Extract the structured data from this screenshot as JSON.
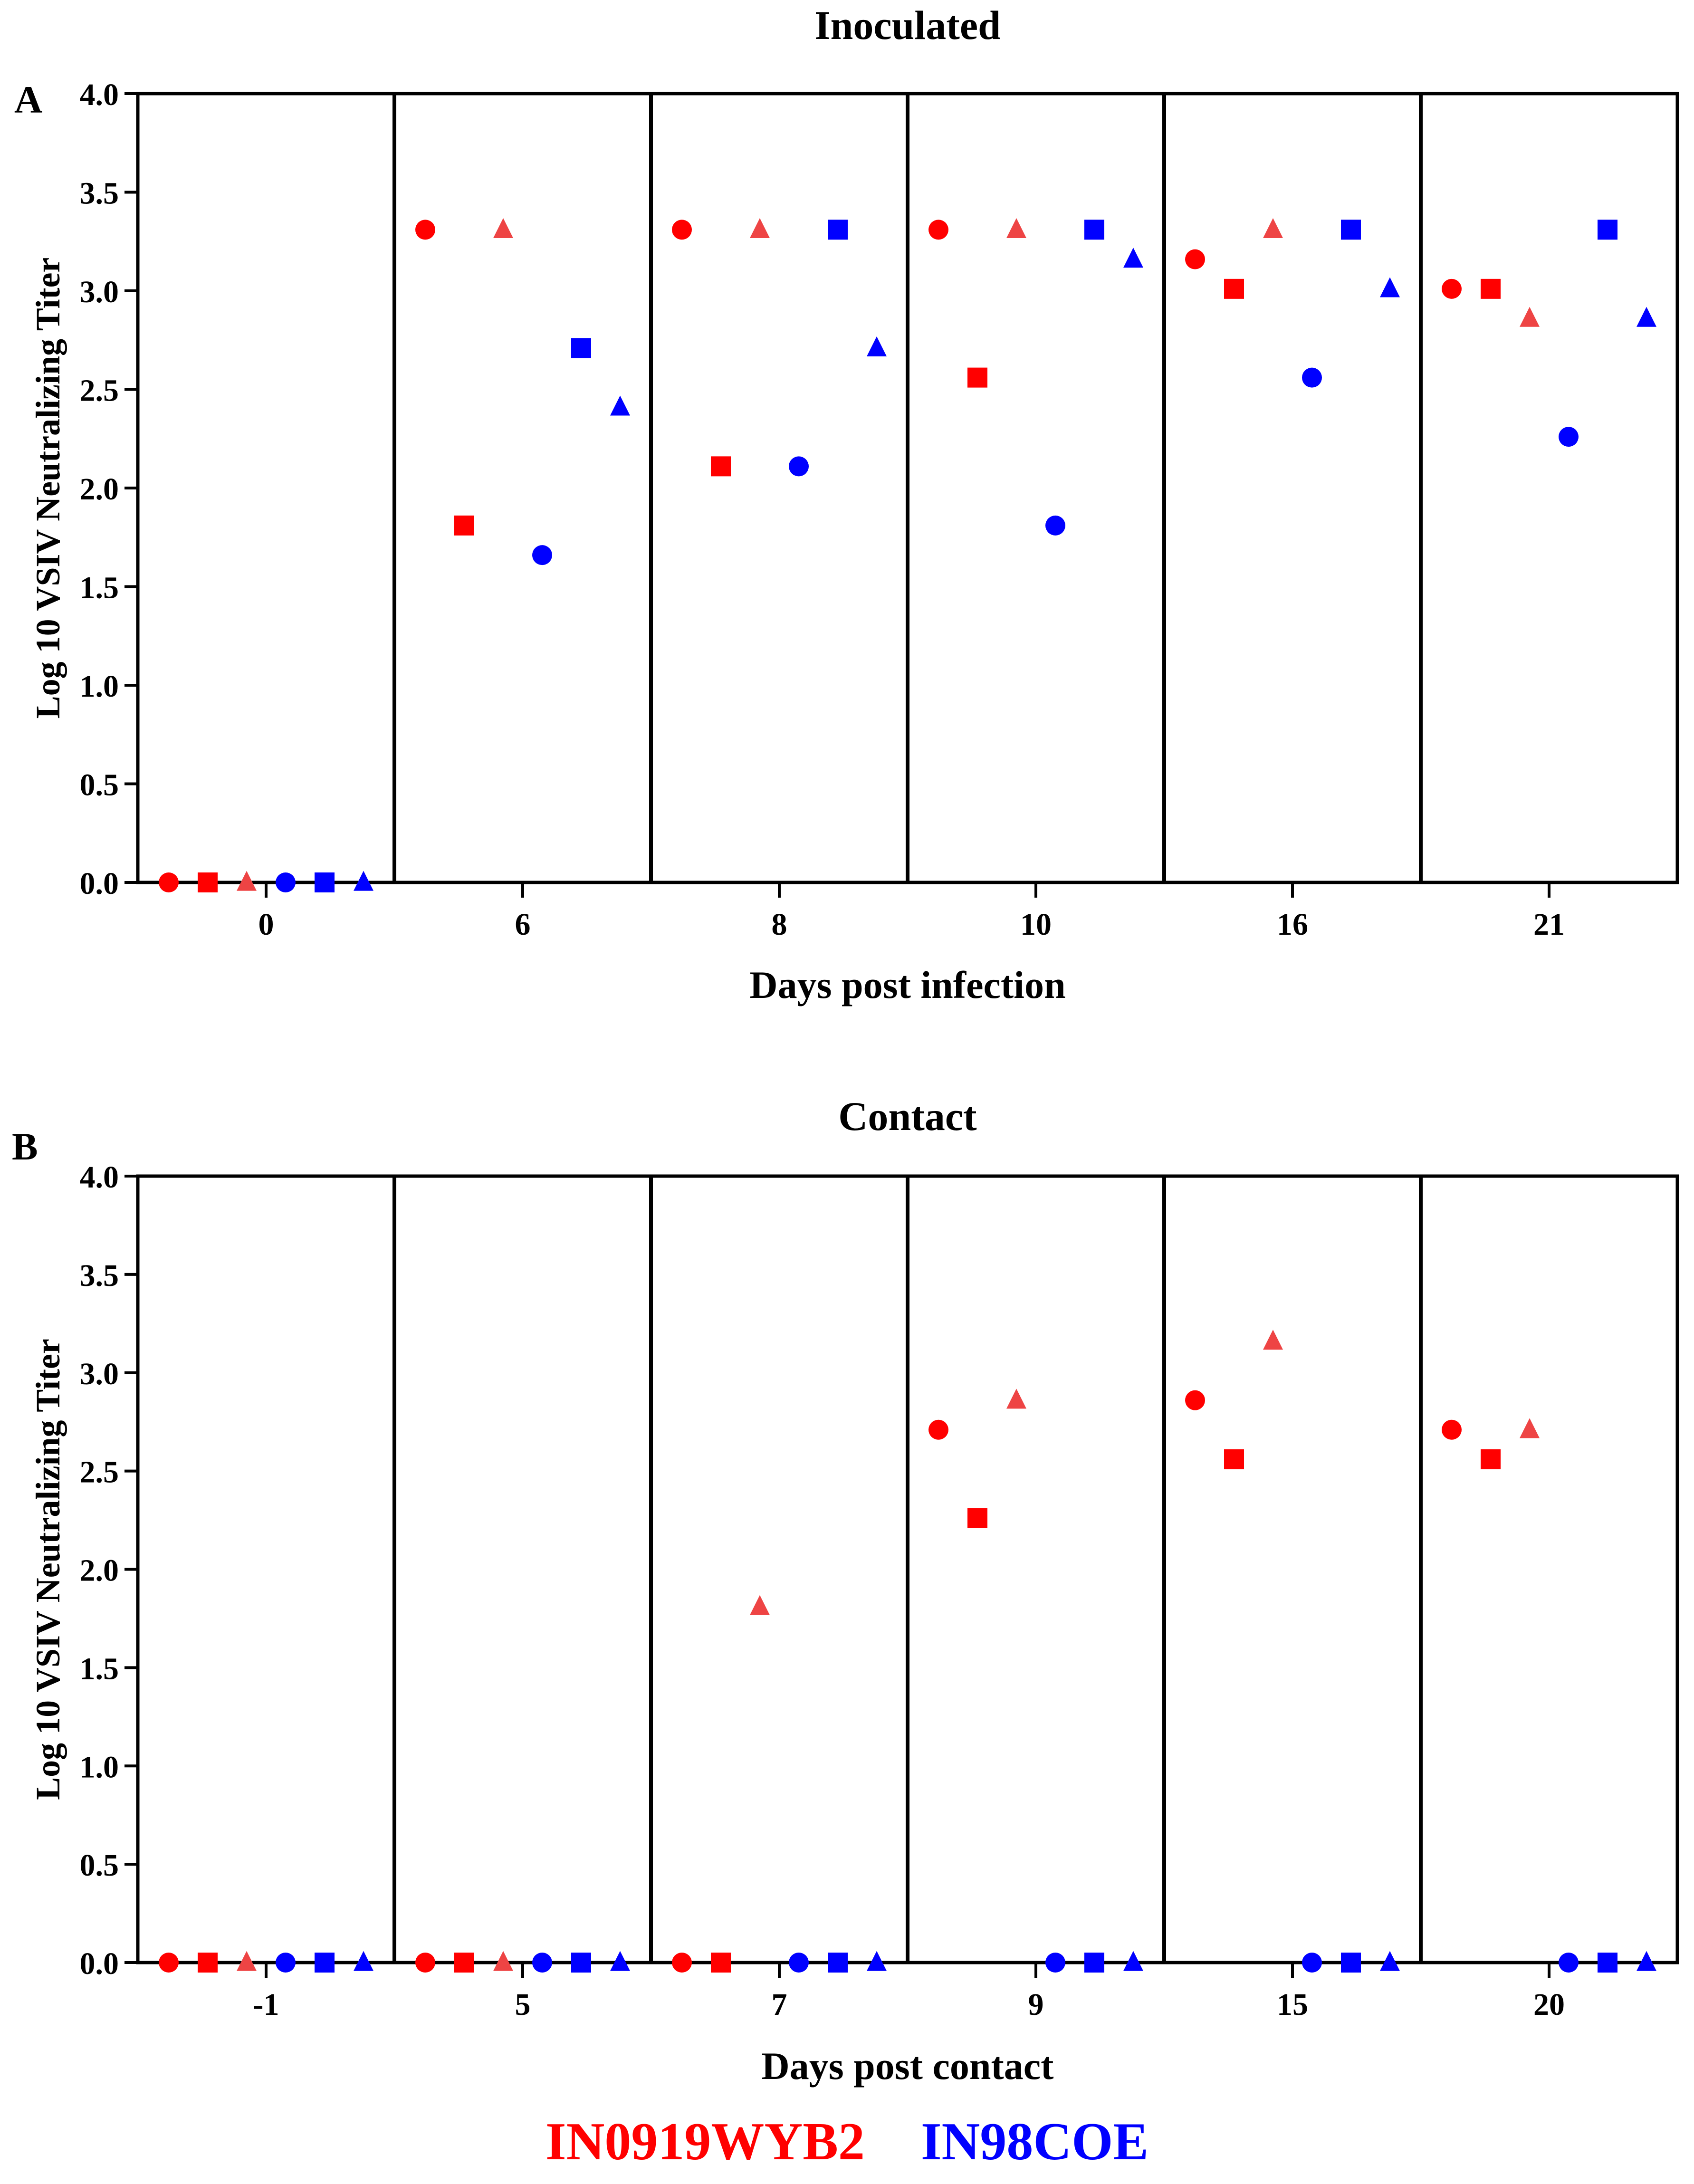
{
  "legend": {
    "strain_a": "IN0919WYB2",
    "strain_b": "IN98COE"
  },
  "colors": {
    "strain_a": "#ff0000",
    "strain_a_triangle": "#ee4444",
    "strain_b": "#0000ff",
    "axis": "#000000"
  },
  "chart_data": [
    {
      "type": "scatter",
      "panel_label": "A",
      "title": "Inoculated",
      "xlabel": "Days post infection",
      "ylabel": "Log 10 VSIV Neutralizing Titer",
      "ylim": [
        0,
        4.0
      ],
      "yticks": [
        "0.0",
        "0.5",
        "1.0",
        "1.5",
        "2.0",
        "2.5",
        "3.0",
        "3.5",
        "4.0"
      ],
      "categories": [
        "0",
        "6",
        "8",
        "10",
        "16",
        "21"
      ],
      "series": [
        {
          "name": "IN0919WYB2",
          "marker": "circle",
          "values": [
            0,
            3.31,
            3.31,
            3.31,
            3.16,
            3.01
          ]
        },
        {
          "name": "IN0919WYB2",
          "marker": "square",
          "values": [
            0,
            1.81,
            2.11,
            2.56,
            3.01,
            3.01
          ]
        },
        {
          "name": "IN0919WYB2",
          "marker": "triangle",
          "values": [
            0,
            3.31,
            3.31,
            3.31,
            3.31,
            2.86
          ]
        },
        {
          "name": "IN98COE",
          "marker": "circle",
          "values": [
            0,
            1.66,
            2.11,
            1.81,
            2.56,
            2.26
          ]
        },
        {
          "name": "IN98COE",
          "marker": "square",
          "values": [
            0,
            2.71,
            3.31,
            3.31,
            3.31,
            3.31
          ]
        },
        {
          "name": "IN98COE",
          "marker": "triangle",
          "values": [
            0,
            2.41,
            2.71,
            3.16,
            3.01,
            2.86
          ]
        }
      ]
    },
    {
      "type": "scatter",
      "panel_label": "B",
      "title": "Contact",
      "xlabel": "Days post contact",
      "ylabel": "Log 10 VSIV Neutralizing Titer",
      "ylim": [
        0,
        4.0
      ],
      "yticks": [
        "0.0",
        "0.5",
        "1.0",
        "1.5",
        "2.0",
        "2.5",
        "3.0",
        "3.5",
        "4.0"
      ],
      "categories": [
        "-1",
        "5",
        "7",
        "9",
        "15",
        "20"
      ],
      "series": [
        {
          "name": "IN0919WYB2",
          "marker": "circle",
          "values": [
            0,
            0,
            0,
            2.71,
            2.86,
            2.71
          ]
        },
        {
          "name": "IN0919WYB2",
          "marker": "square",
          "values": [
            0,
            0,
            0,
            2.26,
            2.56,
            2.56
          ]
        },
        {
          "name": "IN0919WYB2",
          "marker": "triangle",
          "values": [
            0,
            0,
            1.81,
            2.86,
            3.16,
            2.71
          ]
        },
        {
          "name": "IN98COE",
          "marker": "circle",
          "values": [
            0,
            0,
            0,
            0,
            0,
            0
          ]
        },
        {
          "name": "IN98COE",
          "marker": "square",
          "values": [
            0,
            0,
            0,
            0,
            0,
            0
          ]
        },
        {
          "name": "IN98COE",
          "marker": "triangle",
          "values": [
            0,
            0,
            0,
            0,
            0,
            0
          ]
        }
      ]
    }
  ]
}
